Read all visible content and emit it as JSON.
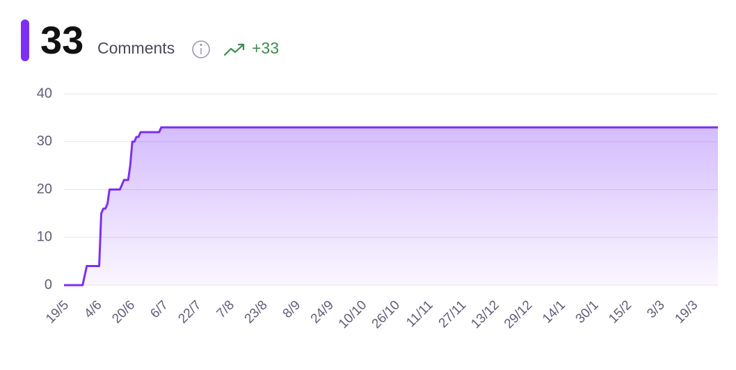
{
  "chart_data": {
    "type": "line",
    "total": 33,
    "title": "Comments",
    "change": "+33",
    "x": [
      0,
      9,
      10,
      11,
      17,
      18,
      19,
      20,
      21,
      22,
      27,
      29,
      31,
      32,
      33,
      34,
      35,
      36,
      37,
      46,
      47,
      316
    ],
    "values": [
      0,
      0,
      2,
      4,
      4,
      15,
      16,
      16,
      17,
      20,
      20,
      22,
      22,
      25,
      30,
      30,
      31,
      31,
      32,
      32,
      33,
      33
    ],
    "color": "#7b2ff7",
    "xlim": [
      0,
      316
    ],
    "xticks": [
      {
        "value": 0,
        "label": "19/5"
      },
      {
        "value": 16,
        "label": "4/6"
      },
      {
        "value": 32,
        "label": "20/6"
      },
      {
        "value": 48,
        "label": "6/7"
      },
      {
        "value": 64,
        "label": "22/7"
      },
      {
        "value": 80,
        "label": "7/8"
      },
      {
        "value": 96,
        "label": "23/8"
      },
      {
        "value": 112,
        "label": "8/9"
      },
      {
        "value": 128,
        "label": "24/9"
      },
      {
        "value": 144,
        "label": "10/10"
      },
      {
        "value": 160,
        "label": "26/10"
      },
      {
        "value": 176,
        "label": "11/11"
      },
      {
        "value": 192,
        "label": "27/11"
      },
      {
        "value": 208,
        "label": "13/12"
      },
      {
        "value": 224,
        "label": "29/12"
      },
      {
        "value": 240,
        "label": "14/1"
      },
      {
        "value": 256,
        "label": "30/1"
      },
      {
        "value": 272,
        "label": "15/2"
      },
      {
        "value": 288,
        "label": "3/3"
      },
      {
        "value": 304,
        "label": "19/3"
      }
    ],
    "ylim": [
      0,
      40
    ],
    "yticks": [
      0,
      10,
      20,
      30,
      40
    ],
    "grid": true
  }
}
